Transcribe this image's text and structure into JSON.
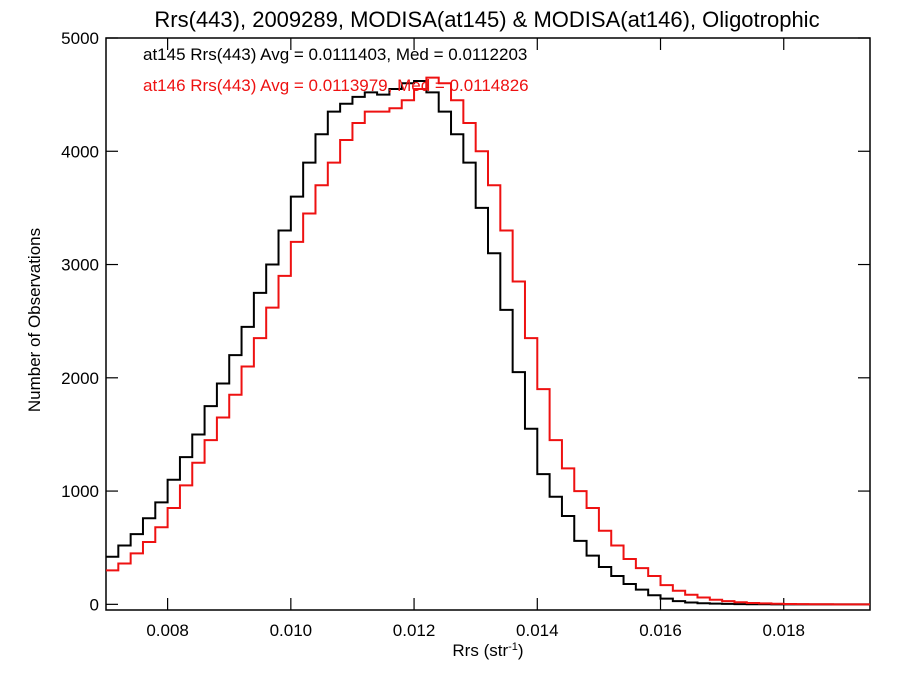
{
  "chart_data": {
    "type": "line",
    "title": "Rrs(443), 2009289, MODISA(at145) & MODISA(at146), Oligotrophic",
    "xlabel_main": "Rrs (str",
    "xlabel_sup": "-1",
    "xlabel_end": ")",
    "ylabel": "Number of Observations",
    "xlim": [
      0.007,
      0.0194
    ],
    "ylim": [
      -50,
      5000
    ],
    "xticks": [
      0.008,
      0.01,
      0.012,
      0.014,
      0.016,
      0.018
    ],
    "xtick_labels": [
      "0.008",
      "0.010",
      "0.012",
      "0.014",
      "0.016",
      "0.018"
    ],
    "yticks": [
      0,
      1000,
      2000,
      3000,
      4000,
      5000
    ],
    "ytick_labels": [
      "0",
      "1000",
      "2000",
      "3000",
      "4000",
      "5000"
    ],
    "legend_placement": "top-left",
    "series": [
      {
        "name": "at145",
        "legend": "at145 Rrs(443) Avg = 0.0111403, Med = 0.0112203",
        "color": "#000000",
        "x": [
          0.007,
          0.0072,
          0.0074,
          0.0076,
          0.0078,
          0.008,
          0.0082,
          0.0084,
          0.0086,
          0.0088,
          0.009,
          0.0092,
          0.0094,
          0.0096,
          0.0098,
          0.01,
          0.0102,
          0.0104,
          0.0106,
          0.0108,
          0.011,
          0.0112,
          0.0114,
          0.0116,
          0.0118,
          0.012,
          0.0122,
          0.0124,
          0.0126,
          0.0128,
          0.013,
          0.0132,
          0.0134,
          0.0136,
          0.0138,
          0.014,
          0.0142,
          0.0144,
          0.0146,
          0.0148,
          0.015,
          0.0152,
          0.0154,
          0.0156,
          0.0158,
          0.016,
          0.0162,
          0.0164,
          0.0166,
          0.0168,
          0.017,
          0.0172,
          0.0174,
          0.0176,
          0.0178,
          0.018,
          0.0182,
          0.0184,
          0.0186,
          0.0188,
          0.019,
          0.0192,
          0.0194
        ],
        "y": [
          420,
          520,
          620,
          760,
          900,
          1100,
          1300,
          1500,
          1750,
          1950,
          2200,
          2450,
          2750,
          3000,
          3300,
          3600,
          3900,
          4150,
          4350,
          4420,
          4480,
          4520,
          4500,
          4550,
          4600,
          4620,
          4520,
          4350,
          4150,
          3900,
          3500,
          3100,
          2600,
          2050,
          1550,
          1150,
          950,
          780,
          560,
          430,
          330,
          250,
          180,
          130,
          80,
          50,
          28,
          16,
          10,
          6,
          4,
          2,
          1,
          1,
          0,
          0,
          0,
          0,
          0,
          0,
          0,
          0,
          0
        ]
      },
      {
        "name": "at146",
        "legend": "at146 Rrs(443) Avg = 0.0113979, Med = 0.0114826",
        "color": "#ee1111",
        "x": [
          0.007,
          0.0072,
          0.0074,
          0.0076,
          0.0078,
          0.008,
          0.0082,
          0.0084,
          0.0086,
          0.0088,
          0.009,
          0.0092,
          0.0094,
          0.0096,
          0.0098,
          0.01,
          0.0102,
          0.0104,
          0.0106,
          0.0108,
          0.011,
          0.0112,
          0.0114,
          0.0116,
          0.0118,
          0.012,
          0.0122,
          0.0124,
          0.0126,
          0.0128,
          0.013,
          0.0132,
          0.0134,
          0.0136,
          0.0138,
          0.014,
          0.0142,
          0.0144,
          0.0146,
          0.0148,
          0.015,
          0.0152,
          0.0154,
          0.0156,
          0.0158,
          0.016,
          0.0162,
          0.0164,
          0.0166,
          0.0168,
          0.017,
          0.0172,
          0.0174,
          0.0176,
          0.0178,
          0.018,
          0.0182,
          0.0184,
          0.0186,
          0.0188,
          0.019,
          0.0192,
          0.0194
        ],
        "y": [
          300,
          360,
          450,
          550,
          680,
          850,
          1050,
          1250,
          1450,
          1650,
          1850,
          2100,
          2350,
          2620,
          2900,
          3200,
          3450,
          3700,
          3900,
          4100,
          4250,
          4350,
          4350,
          4380,
          4450,
          4550,
          4650,
          4600,
          4450,
          4250,
          4000,
          3700,
          3300,
          2850,
          2350,
          1900,
          1450,
          1200,
          1000,
          850,
          650,
          520,
          400,
          320,
          250,
          170,
          120,
          85,
          60,
          40,
          28,
          18,
          12,
          8,
          5,
          3,
          2,
          1,
          1,
          0,
          0,
          0,
          0
        ]
      }
    ]
  }
}
